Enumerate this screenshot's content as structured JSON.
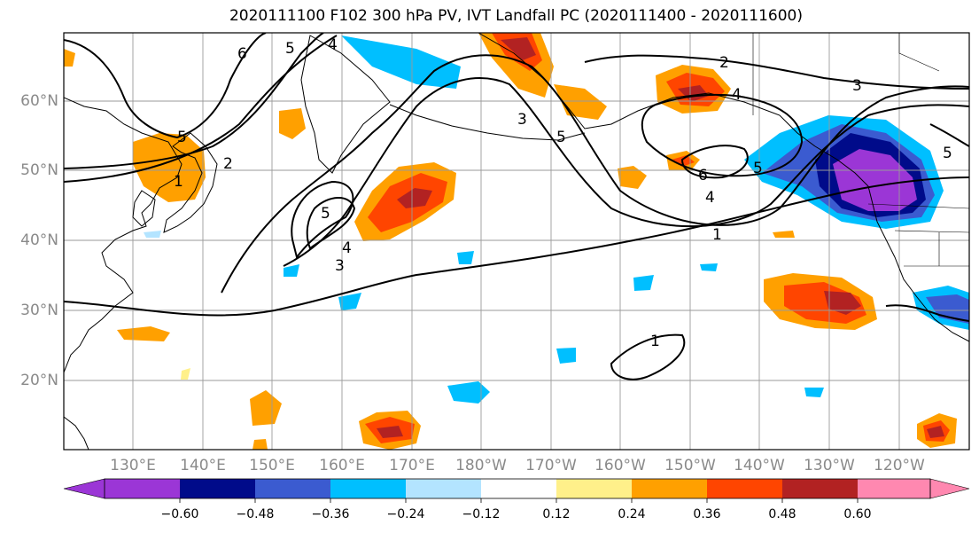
{
  "title": "2020111100 F102 300 hPa PV, IVT Landfall PC (2020111400 - 2020111600)",
  "lat_labels": [
    "60°N",
    "50°N",
    "40°N",
    "30°N",
    "20°N"
  ],
  "lon_labels": [
    "130°E",
    "140°E",
    "150°E",
    "160°E",
    "170°E",
    "180°W",
    "170°W",
    "160°W",
    "150°W",
    "140°W",
    "130°W",
    "120°W"
  ],
  "colorbar": {
    "ticks": [
      "−0.60",
      "−0.48",
      "−0.36",
      "−0.24",
      "−0.12",
      "0.12",
      "0.24",
      "0.36",
      "0.48",
      "0.60"
    ],
    "colors": [
      "#9b36d6",
      "#000b8a",
      "#3b5bd0",
      "#00bfff",
      "#b3e4ff",
      "#ffffff",
      "#fff08a",
      "#ffa000",
      "#ff4500",
      "#b22222",
      "#ff88b0"
    ]
  },
  "contour_labels": [
    "6",
    "5",
    "4",
    "1",
    "2",
    "5",
    "4",
    "3",
    "5",
    "3",
    "5",
    "2",
    "3",
    "4",
    "6",
    "4",
    "5",
    "1",
    "5",
    "1"
  ]
}
